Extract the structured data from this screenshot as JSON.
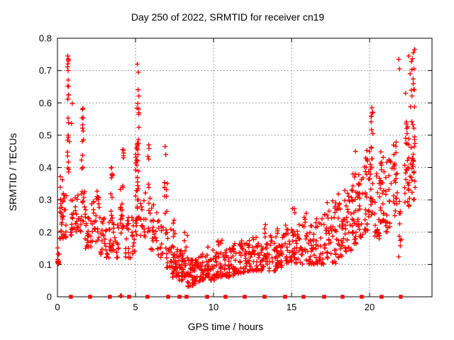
{
  "background": "#ffffff",
  "chart_data": {
    "type": "scatter",
    "title": "Day 250 of 2022, SRMTID for receiver cn19",
    "xlabel": "GPS time / hours",
    "ylabel": "SRMTID / TECUs",
    "xlim": [
      0,
      24
    ],
    "ylim": [
      0,
      0.8
    ],
    "xticks": {
      "values": [
        0,
        5,
        10,
        15,
        20
      ],
      "labels": [
        "0",
        "5",
        "10",
        "15",
        "20"
      ]
    },
    "yticks": {
      "values": [
        0,
        0.1,
        0.2,
        0.3,
        0.4,
        0.5,
        0.6,
        0.7,
        0.8
      ],
      "labels": [
        "0",
        "0.1",
        "0.2",
        "0.3",
        "0.4",
        "0.5",
        "0.6",
        "0.7",
        "0.8"
      ]
    },
    "grid": {
      "show": true,
      "style": "dotted",
      "color": "#808080"
    },
    "legend": "none",
    "axis_color": "#000000",
    "marker_color": "#ff0000",
    "cluster_format": "[x_center_hours, x_halfspread, y_min_TECU, y_max_TECU, n_points, low_bias_power]",
    "series": [
      {
        "name": "SRMTID plus markers",
        "marker": "plus",
        "color": "#ff0000",
        "points": [
          [
            0.05,
            0.104
          ],
          [
            0.18,
            0.372
          ],
          [
            0.32,
            0.362
          ],
          [
            0.66,
            0.745
          ],
          [
            0.7,
            0.73
          ],
          [
            0.68,
            0.7
          ],
          [
            0.67,
            0.652
          ],
          [
            0.7,
            0.625
          ],
          [
            0.66,
            0.612
          ],
          [
            0.95,
            0.598
          ],
          [
            0.68,
            0.553
          ],
          [
            0.9,
            0.536
          ],
          [
            0.68,
            0.5
          ],
          [
            0.77,
            0.48
          ],
          [
            1.6,
            0.58
          ],
          [
            1.58,
            0.553
          ],
          [
            1.62,
            0.532
          ],
          [
            1.59,
            0.481
          ],
          [
            1.61,
            0.438
          ],
          [
            1.57,
            0.397
          ],
          [
            3.47,
            0.4
          ],
          [
            3.53,
            0.375
          ],
          [
            4.17,
            0.455
          ],
          [
            4.23,
            0.43
          ],
          [
            5.12,
            0.72
          ],
          [
            5.18,
            0.695
          ],
          [
            5.08,
            0.46
          ],
          [
            5.14,
            0.455
          ],
          [
            5.11,
            0.47
          ],
          [
            5.16,
            0.44
          ],
          [
            5.85,
            0.47
          ],
          [
            6.9,
            0.465
          ],
          [
            6.94,
            0.44
          ],
          [
            19.1,
            0.45
          ],
          [
            20.15,
            0.585
          ],
          [
            20.1,
            0.558
          ],
          [
            21.87,
            0.735
          ],
          [
            21.92,
            0.705
          ],
          [
            22.3,
            0.63
          ],
          [
            22.5,
            0.745
          ],
          [
            22.6,
            0.69
          ],
          [
            22.8,
            0.755
          ],
          [
            22.85,
            0.705
          ],
          [
            22.9,
            0.765
          ],
          [
            4.03,
            0.003
          ],
          [
            4.1,
            0.003
          ]
        ],
        "clusters": [
          [
            0.04,
            0.04,
            0.095,
            0.118,
            9,
            1
          ],
          [
            0.07,
            0.05,
            0.13,
            0.175,
            4,
            1
          ],
          [
            0.35,
            0.22,
            0.18,
            0.34,
            34,
            1.6
          ],
          [
            0.68,
            0.05,
            0.37,
            0.56,
            9,
            1.2
          ],
          [
            0.68,
            0.04,
            0.59,
            0.755,
            8,
            1
          ],
          [
            0.95,
            0.15,
            0.19,
            0.3,
            14,
            1.4
          ],
          [
            1.25,
            0.15,
            0.2,
            0.33,
            16,
            1.4
          ],
          [
            1.6,
            0.07,
            0.39,
            0.585,
            7,
            1
          ],
          [
            1.6,
            0.15,
            0.2,
            0.35,
            16,
            1.4
          ],
          [
            1.95,
            0.2,
            0.15,
            0.28,
            20,
            1.5
          ],
          [
            2.3,
            0.18,
            0.15,
            0.3,
            18,
            1.5
          ],
          [
            2.6,
            0.15,
            0.17,
            0.335,
            14,
            1.3
          ],
          [
            2.95,
            0.2,
            0.13,
            0.26,
            18,
            1.5
          ],
          [
            3.25,
            0.15,
            0.12,
            0.245,
            14,
            1.5
          ],
          [
            3.5,
            0.12,
            0.14,
            0.32,
            18,
            1.4
          ],
          [
            3.5,
            0.07,
            0.34,
            0.4,
            4,
            1
          ],
          [
            3.8,
            0.15,
            0.12,
            0.26,
            13,
            1.5
          ],
          [
            4.15,
            0.12,
            0.15,
            0.36,
            18,
            1.5
          ],
          [
            4.2,
            0.05,
            0.4,
            0.455,
            4,
            1
          ],
          [
            4.5,
            0.18,
            0.12,
            0.25,
            16,
            1.5
          ],
          [
            4.8,
            0.15,
            0.13,
            0.28,
            13,
            1.5
          ],
          [
            5.1,
            0.1,
            0.3,
            0.5,
            24,
            1.2
          ],
          [
            5.15,
            0.07,
            0.52,
            0.72,
            8,
            1
          ],
          [
            5.1,
            0.15,
            0.18,
            0.295,
            12,
            1.3
          ],
          [
            5.5,
            0.18,
            0.18,
            0.355,
            16,
            1.4
          ],
          [
            5.85,
            0.1,
            0.2,
            0.47,
            13,
            1.7
          ],
          [
            6.2,
            0.22,
            0.14,
            0.285,
            20,
            1.5
          ],
          [
            6.6,
            0.18,
            0.12,
            0.24,
            15,
            1.5
          ],
          [
            6.95,
            0.1,
            0.25,
            0.36,
            9,
            1.3
          ],
          [
            7.1,
            0.18,
            0.09,
            0.22,
            18,
            1.7
          ],
          [
            7.5,
            0.22,
            0.06,
            0.16,
            34,
            1.5
          ],
          [
            7.45,
            0.08,
            0.17,
            0.255,
            5,
            1
          ],
          [
            7.9,
            0.18,
            0.05,
            0.145,
            30,
            1.4
          ],
          [
            8.2,
            0.13,
            0.06,
            0.2,
            18,
            1.9
          ],
          [
            8.5,
            0.22,
            0.032,
            0.115,
            32,
            1.4
          ],
          [
            8.9,
            0.18,
            0.04,
            0.125,
            26,
            1.4
          ],
          [
            9.3,
            0.22,
            0.05,
            0.135,
            28,
            1.4
          ],
          [
            9.65,
            0.1,
            0.06,
            0.19,
            18,
            1.7
          ],
          [
            10.0,
            0.22,
            0.05,
            0.145,
            28,
            1.5
          ],
          [
            10.5,
            0.26,
            0.06,
            0.175,
            32,
            1.5
          ],
          [
            11.0,
            0.26,
            0.06,
            0.155,
            30,
            1.5
          ],
          [
            11.5,
            0.26,
            0.07,
            0.17,
            30,
            1.5
          ],
          [
            12.0,
            0.26,
            0.07,
            0.175,
            30,
            1.5
          ],
          [
            12.5,
            0.26,
            0.08,
            0.185,
            30,
            1.5
          ],
          [
            13.0,
            0.26,
            0.08,
            0.185,
            28,
            1.5
          ],
          [
            13.35,
            0.12,
            0.1,
            0.235,
            16,
            1.6
          ],
          [
            13.8,
            0.26,
            0.08,
            0.195,
            28,
            1.5
          ],
          [
            14.3,
            0.26,
            0.09,
            0.215,
            30,
            1.5
          ],
          [
            14.8,
            0.22,
            0.1,
            0.225,
            26,
            1.5
          ],
          [
            15.15,
            0.1,
            0.12,
            0.29,
            16,
            1.5
          ],
          [
            15.5,
            0.22,
            0.1,
            0.225,
            24,
            1.5
          ],
          [
            15.9,
            0.1,
            0.14,
            0.26,
            12,
            1.5
          ],
          [
            16.2,
            0.26,
            0.1,
            0.225,
            28,
            1.5
          ],
          [
            16.8,
            0.26,
            0.1,
            0.245,
            28,
            1.5
          ],
          [
            17.25,
            0.18,
            0.12,
            0.3,
            24,
            1.5
          ],
          [
            17.7,
            0.22,
            0.1,
            0.3,
            28,
            1.5
          ],
          [
            18.15,
            0.18,
            0.12,
            0.335,
            26,
            1.5
          ],
          [
            18.6,
            0.22,
            0.14,
            0.335,
            28,
            1.4
          ],
          [
            19.0,
            0.18,
            0.16,
            0.385,
            28,
            1.4
          ],
          [
            19.4,
            0.18,
            0.18,
            0.405,
            26,
            1.4
          ],
          [
            19.8,
            0.18,
            0.2,
            0.455,
            26,
            1.3
          ],
          [
            20.1,
            0.1,
            0.25,
            0.5,
            20,
            1.2
          ],
          [
            20.15,
            0.06,
            0.5,
            0.585,
            6,
            1
          ],
          [
            20.5,
            0.18,
            0.18,
            0.385,
            22,
            1.4
          ],
          [
            20.8,
            0.13,
            0.22,
            0.455,
            24,
            1.3
          ],
          [
            21.2,
            0.18,
            0.2,
            0.425,
            22,
            1.3
          ],
          [
            21.6,
            0.18,
            0.25,
            0.485,
            24,
            1.2
          ],
          [
            21.95,
            0.08,
            0.12,
            0.3,
            10,
            1.4
          ],
          [
            22.4,
            0.18,
            0.28,
            0.555,
            32,
            1.2
          ],
          [
            22.75,
            0.18,
            0.3,
            0.605,
            30,
            1.2
          ],
          [
            22.8,
            0.13,
            0.61,
            0.77,
            10,
            1
          ]
        ]
      },
      {
        "name": "baseline square markers",
        "marker": "filled-square",
        "color": "#ff0000",
        "y": 0,
        "x": [
          0.86,
          2.09,
          3.36,
          4.59,
          5.77,
          7.09,
          7.82,
          8.27,
          9.59,
          10.77,
          12.0,
          13.27,
          14.59,
          15.77,
          17.09,
          18.27,
          19.5,
          20.77,
          22.0
        ]
      }
    ]
  }
}
